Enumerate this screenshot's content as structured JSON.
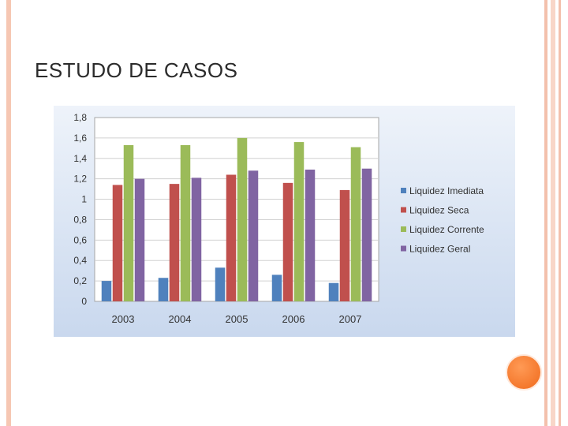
{
  "slide": {
    "title": "ESTUDO DE CASOS"
  },
  "colors": {
    "frame": "#f6c7b3",
    "accent_dot": "#f07a2a",
    "chart_bg_top": "#eef3fa",
    "chart_bg_bottom": "#c9d8ee"
  },
  "chart_data": {
    "type": "bar",
    "categories": [
      "2003",
      "2004",
      "2005",
      "2006",
      "2007"
    ],
    "series": [
      {
        "name": "Liquidez Imediata",
        "color": "#4f81bd",
        "values": [
          0.2,
          0.23,
          0.33,
          0.26,
          0.18
        ]
      },
      {
        "name": "Liquidez Seca",
        "color": "#c0504d",
        "values": [
          1.14,
          1.15,
          1.24,
          1.16,
          1.09
        ]
      },
      {
        "name": "Liquidez Corrente",
        "color": "#9bbb59",
        "values": [
          1.53,
          1.53,
          1.6,
          1.56,
          1.51
        ]
      },
      {
        "name": "Liquidez Geral",
        "color": "#8064a2",
        "values": [
          1.2,
          1.21,
          1.28,
          1.29,
          1.3
        ]
      }
    ],
    "yticks": [
      "0",
      "0,2",
      "0,4",
      "0,6",
      "0,8",
      "1",
      "1,2",
      "1,4",
      "1,6",
      "1,8"
    ],
    "ylim": [
      0,
      1.8
    ],
    "grid": true,
    "legend": "right"
  }
}
